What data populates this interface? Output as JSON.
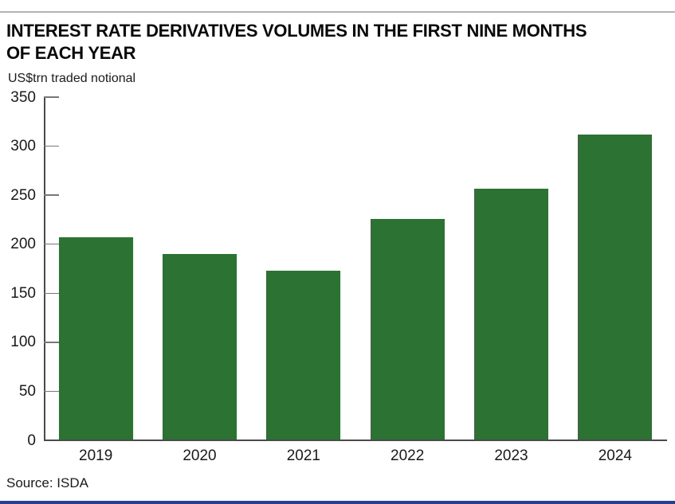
{
  "header": {
    "title_line1": "INTEREST RATE DERIVATIVES VOLUMES IN THE FIRST NINE MONTHS",
    "title_line2": "OF EACH YEAR",
    "subtitle": "US$trn traded notional"
  },
  "footer": {
    "source": "Source: ISDA"
  },
  "colors": {
    "bar": "#2c7233",
    "axis": "#4a4a4a",
    "tick": "#777777",
    "top_rule": "#b3b3b3",
    "bottom_rule": "#27408b",
    "text": "#1a1a1a"
  },
  "chart_data": {
    "type": "bar",
    "title": "INTEREST RATE DERIVATIVES VOLUMES IN THE FIRST NINE MONTHS OF EACH YEAR",
    "subtitle": "US$trn traded notional",
    "categories": [
      "2019",
      "2020",
      "2021",
      "2022",
      "2023",
      "2024"
    ],
    "values": [
      207,
      190,
      173,
      226,
      257,
      312
    ],
    "xlabel": "",
    "ylabel": "US$trn traded notional",
    "ylim": [
      0,
      350
    ],
    "yticks": [
      0,
      50,
      100,
      150,
      200,
      250,
      300,
      350
    ],
    "grid": false,
    "legend": false,
    "source": "Source: ISDA"
  }
}
